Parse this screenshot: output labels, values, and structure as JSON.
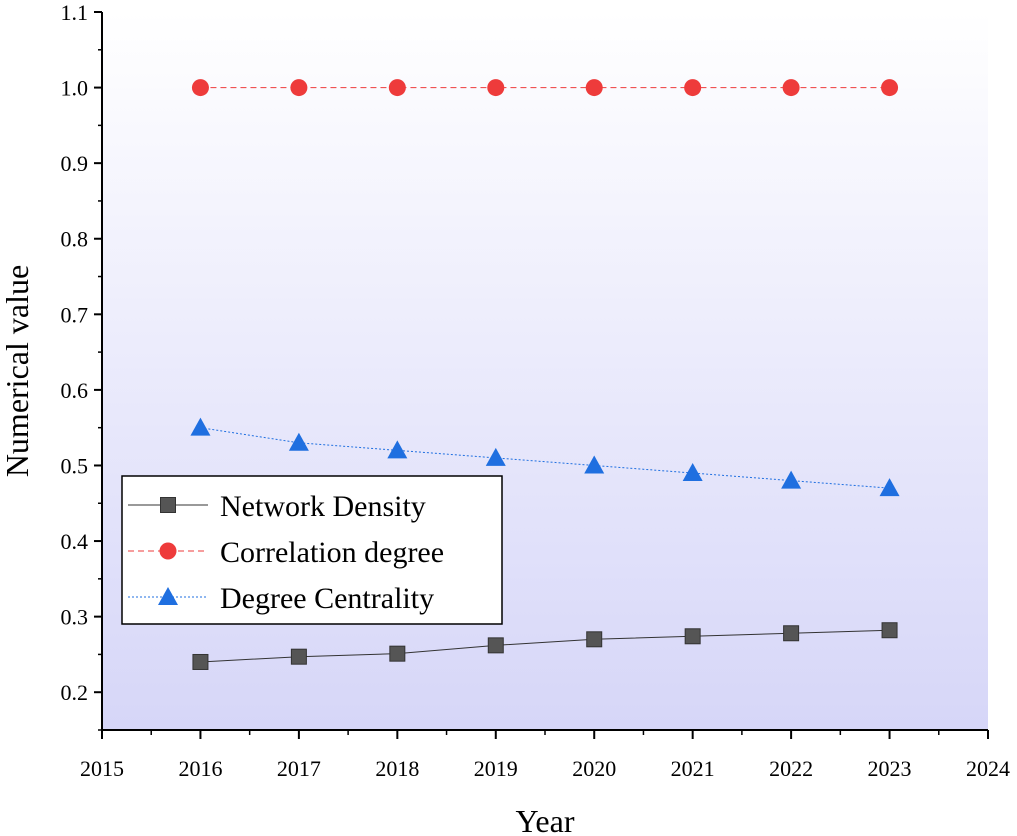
{
  "chart_data": {
    "type": "line",
    "title": "",
    "xlabel": "Year",
    "ylabel": "Numerical value",
    "xlim": [
      2015,
      2024
    ],
    "ylim": [
      0.15,
      1.1
    ],
    "x_ticks": [
      "2015",
      "2016",
      "2017",
      "2018",
      "2019",
      "2020",
      "2021",
      "2022",
      "2023",
      "2024"
    ],
    "y_ticks": [
      "0.2",
      "0.3",
      "0.4",
      "0.5",
      "0.6",
      "0.7",
      "0.8",
      "0.9",
      "1.0",
      "1.1"
    ],
    "legend_position": "lower-left",
    "x": [
      2016,
      2017,
      2018,
      2019,
      2020,
      2021,
      2022,
      2023
    ],
    "series": [
      {
        "name": "Network Density",
        "marker": "square",
        "line": "solid",
        "color": "#555555",
        "values": [
          0.24,
          0.247,
          0.251,
          0.262,
          0.27,
          0.274,
          0.278,
          0.282
        ]
      },
      {
        "name": "Correlation degree",
        "marker": "circle",
        "line": "dashed",
        "color": "#ee3b3b",
        "values": [
          1.0,
          1.0,
          1.0,
          1.0,
          1.0,
          1.0,
          1.0,
          1.0
        ]
      },
      {
        "name": "Degree Centrality",
        "marker": "triangle",
        "line": "dotted",
        "color": "#1f6fe0",
        "values": [
          0.55,
          0.53,
          0.52,
          0.51,
          0.5,
          0.49,
          0.48,
          0.47
        ]
      }
    ],
    "background_gradient": [
      "#ffffff",
      "#d6d6f8"
    ]
  }
}
